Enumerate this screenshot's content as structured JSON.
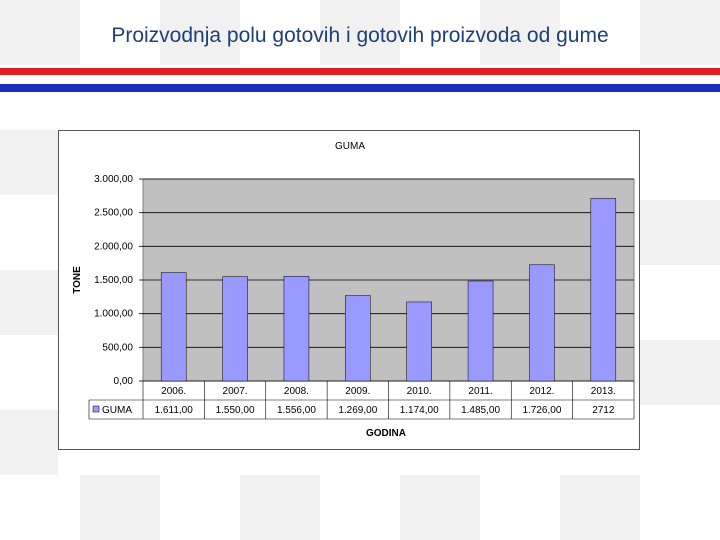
{
  "slide": {
    "title": "Proizvodnja polu gotovih i gotovih proizvoda od gume"
  },
  "colors": {
    "title": "#1f3f7a",
    "stripe_red": "#e02020",
    "stripe_blue": "#1a2fb8",
    "plot_bg": "#c0c0c0",
    "bar": "#9999ff"
  },
  "chart_data": {
    "type": "bar",
    "title": "GUMA",
    "xlabel": "GODINA",
    "ylabel": "TONE",
    "categories": [
      "2006.",
      "2007.",
      "2008.",
      "2009.",
      "2010.",
      "2011.",
      "2012.",
      "2013."
    ],
    "series": [
      {
        "name": "GUMA",
        "values": [
          1611,
          1550,
          1556,
          1269,
          1174,
          1485,
          1726,
          2712
        ],
        "value_labels": [
          "1.611,00",
          "1.550,00",
          "1.556,00",
          "1.269,00",
          "1.174,00",
          "1.485,00",
          "1.726,00",
          "2712"
        ]
      }
    ],
    "ylim": [
      0,
      3000
    ],
    "yticks": [
      0,
      500,
      1000,
      1500,
      2000,
      2500,
      3000
    ],
    "ytick_labels": [
      "0,00",
      "500,00",
      "1.000,00",
      "1.500,00",
      "2.000,00",
      "2.500,00",
      "3.000,00"
    ],
    "grid": true,
    "legend": "data-table-below"
  }
}
